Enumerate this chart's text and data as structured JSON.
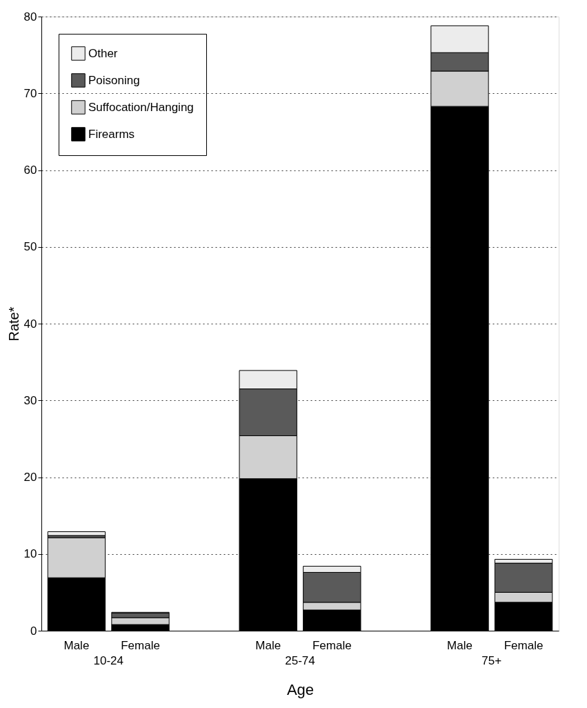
{
  "chart_data": {
    "type": "bar",
    "stacked": true,
    "xlabel": "Age",
    "ylabel": "Rate*",
    "categories": [
      "Male",
      "Female",
      "Male",
      "Female",
      "Male",
      "Female"
    ],
    "annotations": [
      "10-24",
      "25-74",
      "75+"
    ],
    "series": [
      {
        "name": "Firearms",
        "color": "#000000",
        "values": [
          6.9,
          0.8,
          19.8,
          2.7,
          68.3,
          3.7
        ]
      },
      {
        "name": "Suffocation/Hanging",
        "color": "#d0d0d0",
        "values": [
          5.2,
          0.9,
          5.6,
          1.0,
          4.6,
          1.3
        ]
      },
      {
        "name": "Poisoning",
        "color": "#5a5a5a",
        "values": [
          0.3,
          0.6,
          6.1,
          3.9,
          2.4,
          3.8
        ]
      },
      {
        "name": "Other",
        "color": "#ececec",
        "values": [
          0.5,
          0.1,
          2.4,
          0.8,
          3.5,
          0.5
        ]
      }
    ],
    "ylim": [
      0,
      80
    ],
    "yticks": [
      0,
      10,
      20,
      30,
      40,
      50,
      60,
      70,
      80
    ],
    "grid": "y",
    "legend": "top left"
  }
}
